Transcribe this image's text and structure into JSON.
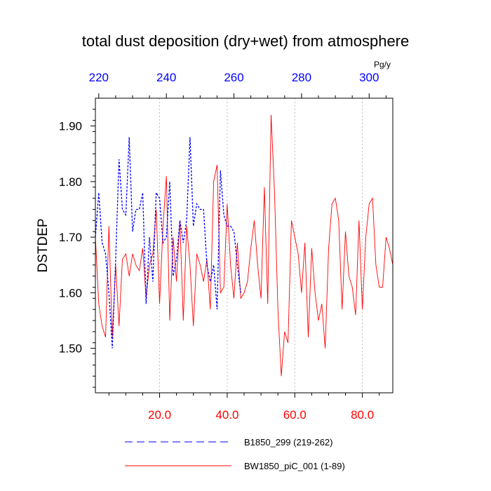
{
  "chart_data": {
    "type": "line",
    "title": "total dust deposition (dry+wet) from atmosphere",
    "ylabel": "DSTDEP",
    "units": "Pg/y",
    "bottom_axis": {
      "range": [
        1,
        89
      ],
      "ticks": [
        20,
        40,
        60,
        80
      ],
      "tick_labels": [
        "20.0",
        "40.0",
        "60.0",
        "80.0"
      ],
      "color": "#ff0000"
    },
    "top_axis": {
      "range": [
        219,
        307
      ],
      "ticks": [
        220,
        240,
        260,
        280,
        300
      ],
      "tick_labels": [
        "220",
        "240",
        "260",
        "280",
        "300"
      ],
      "color": "#0000ff"
    },
    "ylim": [
      1.42,
      1.95
    ],
    "yticks": [
      1.5,
      1.6,
      1.7,
      1.8,
      1.9
    ],
    "ytick_labels": [
      "1.50",
      "1.60",
      "1.70",
      "1.80",
      "1.90"
    ],
    "series": [
      {
        "name": "B1850_299 (219-262)",
        "axis": "top",
        "color": "#0000ff",
        "style": "dashed",
        "x": [
          219,
          220,
          221,
          222,
          223,
          224,
          225,
          226,
          227,
          228,
          229,
          230,
          231,
          232,
          233,
          234,
          235,
          236,
          237,
          238,
          239,
          240,
          241,
          242,
          243,
          244,
          245,
          246,
          247,
          248,
          249,
          250,
          251,
          252,
          253,
          254,
          255,
          256,
          257,
          258,
          259,
          260,
          261,
          262
        ],
        "values": [
          1.7,
          1.78,
          1.69,
          1.67,
          1.6,
          1.5,
          1.66,
          1.84,
          1.75,
          1.74,
          1.88,
          1.71,
          1.75,
          1.75,
          1.78,
          1.58,
          1.7,
          1.62,
          1.78,
          1.77,
          1.69,
          1.7,
          1.8,
          1.63,
          1.66,
          1.73,
          1.69,
          1.73,
          1.88,
          1.72,
          1.76,
          1.75,
          1.75,
          1.65,
          1.62,
          1.65,
          1.57,
          1.82,
          1.74,
          1.72,
          1.72,
          1.71,
          1.65,
          1.6
        ]
      },
      {
        "name": "BW1850_piC_001 (1-89)",
        "axis": "bottom",
        "color": "#ff0000",
        "style": "solid",
        "x": [
          1,
          2,
          3,
          4,
          5,
          6,
          7,
          8,
          9,
          10,
          11,
          12,
          13,
          14,
          15,
          16,
          17,
          18,
          19,
          20,
          21,
          22,
          23,
          24,
          25,
          26,
          27,
          28,
          29,
          30,
          31,
          32,
          33,
          34,
          35,
          36,
          37,
          38,
          39,
          40,
          41,
          42,
          43,
          44,
          45,
          46,
          47,
          48,
          49,
          50,
          51,
          52,
          53,
          54,
          55,
          56,
          57,
          58,
          59,
          60,
          61,
          62,
          63,
          64,
          65,
          66,
          67,
          68,
          69,
          70,
          71,
          72,
          73,
          74,
          75,
          76,
          77,
          78,
          79,
          80,
          81,
          82,
          83,
          84,
          85,
          86,
          87,
          88,
          89
        ],
        "values": [
          1.7,
          1.58,
          1.54,
          1.52,
          1.72,
          1.52,
          1.65,
          1.54,
          1.66,
          1.67,
          1.63,
          1.67,
          1.65,
          1.64,
          1.68,
          1.59,
          1.65,
          1.67,
          1.75,
          1.58,
          1.72,
          1.81,
          1.55,
          1.7,
          1.62,
          1.73,
          1.55,
          1.72,
          1.65,
          1.54,
          1.67,
          1.65,
          1.62,
          1.66,
          1.57,
          1.8,
          1.83,
          1.6,
          1.61,
          1.76,
          1.65,
          1.59,
          1.69,
          1.59,
          1.6,
          1.62,
          1.68,
          1.73,
          1.65,
          1.59,
          1.79,
          1.58,
          1.92,
          1.78,
          1.57,
          1.45,
          1.53,
          1.51,
          1.73,
          1.7,
          1.67,
          1.6,
          1.69,
          1.52,
          1.68,
          1.6,
          1.55,
          1.58,
          1.5,
          1.68,
          1.76,
          1.77,
          1.73,
          1.57,
          1.71,
          1.63,
          1.61,
          1.56,
          1.73,
          1.57,
          1.7,
          1.76,
          1.77,
          1.65,
          1.61,
          1.61,
          1.7,
          1.68,
          1.65
        ]
      }
    ]
  }
}
